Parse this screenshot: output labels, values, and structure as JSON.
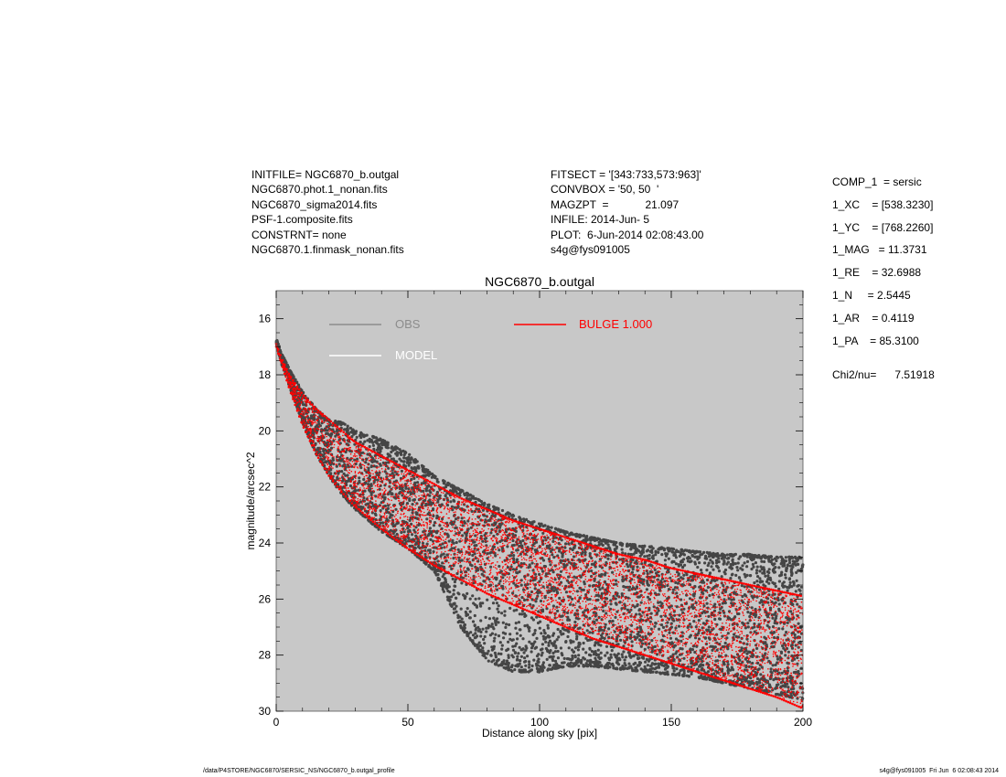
{
  "header_left": [
    "INITFILE= NGC6870_b.outgal",
    "NGC6870.phot.1_nonan.fits",
    "NGC6870_sigma2014.fits",
    "PSF-1.composite.fits",
    "CONSTRNT= none",
    "NGC6870.1.finmask_nonan.fits"
  ],
  "header_mid": [
    "FITSECT = '[343:733,573:963]'",
    "CONVBOX = '50, 50  '",
    "MAGZPT  =            21.097",
    "INFILE: 2014-Jun- 5",
    "PLOT:  6-Jun-2014 02:08:43.00",
    "s4g@fys091005"
  ],
  "params": [
    "COMP_1  = sersic",
    "1_XC    = [538.3230]",
    "1_YC    = [768.2260]",
    "1_MAG   = 11.3731",
    "1_RE    = 32.6988",
    "1_N     = 2.5445",
    "1_AR    = 0.4119",
    "1_PA    = 85.3100",
    "Chi2/nu=      7.51918"
  ],
  "footer_left": "/data/P4STORE/NGC6870/SERSIC_NS/NGC6870_b.outgal_profile",
  "footer_right": "s4g@fys091005  Fri Jun  6 02:08:43 2014",
  "colors": {
    "plot_background": "#c8c8c8",
    "obs": "#454545",
    "obs_legend": "#8c8c8c",
    "model": "#ffffff",
    "bulge": "#ff0000"
  },
  "chart_data": {
    "type": "scatter",
    "title": "NGC6870_b.outgal",
    "xlabel": "Distance along sky [pix]",
    "ylabel": "magnitude/arcsec^2",
    "xlim": [
      0,
      200
    ],
    "ylim": [
      30,
      15
    ],
    "y_inverted": true,
    "xticks": [
      0,
      50,
      100,
      150,
      200
    ],
    "yticks": [
      16,
      18,
      20,
      22,
      24,
      26,
      28,
      30
    ],
    "grid": false,
    "legend": [
      {
        "label": "OBS",
        "color": "#8c8c8c"
      },
      {
        "label": "MODEL",
        "color": "#ffffff"
      },
      {
        "label": "BULGE  1.000",
        "color": "#ff0000"
      }
    ],
    "series": [
      {
        "name": "OBS",
        "color": "#454545",
        "description": "dense scatter of observed pixel surface brightness",
        "upper_envelope_x": [
          0,
          2,
          5,
          10,
          15,
          20,
          25,
          30,
          40,
          50,
          60,
          70,
          80,
          90,
          100,
          110,
          120,
          130,
          140,
          150,
          160,
          170,
          180,
          190,
          200
        ],
        "upper_envelope_y": [
          16.7,
          17.2,
          17.8,
          18.6,
          19.2,
          19.6,
          19.7,
          20.0,
          20.3,
          20.8,
          21.6,
          22.1,
          22.6,
          23.0,
          23.3,
          23.6,
          23.8,
          24.0,
          24.1,
          24.2,
          24.3,
          24.4,
          24.4,
          24.5,
          24.5
        ],
        "lower_envelope_x": [
          0,
          2,
          5,
          10,
          15,
          20,
          25,
          30,
          40,
          50,
          60,
          70,
          80,
          90,
          100,
          110,
          120,
          130,
          140,
          150,
          160,
          170,
          180,
          190,
          200
        ],
        "lower_envelope_y": [
          16.9,
          17.6,
          18.4,
          19.7,
          20.8,
          21.6,
          22.3,
          22.8,
          23.6,
          24.2,
          25.0,
          27.0,
          28.2,
          28.6,
          28.6,
          28.4,
          28.4,
          28.5,
          28.6,
          28.7,
          28.8,
          29.0,
          29.2,
          29.4,
          29.6
        ]
      },
      {
        "name": "BULGE  1.000",
        "color": "#ff0000",
        "description": "sersic model pixels, band between curves",
        "upper_curve_x": [
          0,
          2,
          5,
          10,
          15,
          20,
          25,
          30,
          40,
          50,
          60,
          70,
          80,
          90,
          100,
          110,
          120,
          130,
          140,
          150,
          160,
          170,
          180,
          190,
          200
        ],
        "upper_curve_y": [
          16.9,
          17.4,
          18.0,
          18.7,
          19.2,
          19.6,
          20.0,
          20.4,
          20.9,
          21.4,
          21.9,
          22.4,
          22.8,
          23.2,
          23.5,
          23.8,
          24.1,
          24.4,
          24.6,
          24.9,
          25.1,
          25.3,
          25.5,
          25.7,
          25.9
        ],
        "lower_curve_x": [
          0,
          2,
          5,
          10,
          15,
          20,
          25,
          30,
          40,
          50,
          60,
          70,
          80,
          90,
          100,
          110,
          120,
          130,
          140,
          150,
          160,
          170,
          180,
          190,
          200
        ],
        "lower_curve_y": [
          17.0,
          17.6,
          18.5,
          19.8,
          20.8,
          21.6,
          22.2,
          22.7,
          23.5,
          24.2,
          24.8,
          25.3,
          25.8,
          26.2,
          26.6,
          27.0,
          27.4,
          27.7,
          28.0,
          28.3,
          28.6,
          28.9,
          29.2,
          29.5,
          29.9
        ]
      }
    ]
  }
}
